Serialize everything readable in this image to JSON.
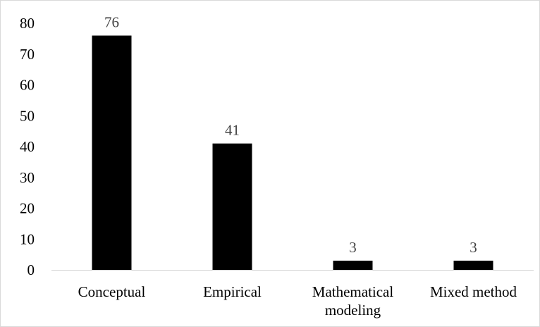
{
  "chart_data": {
    "type": "bar",
    "categories": [
      [
        "Conceptual"
      ],
      [
        "Empirical"
      ],
      [
        "Mathematical",
        "modeling"
      ],
      [
        "Mixed method"
      ]
    ],
    "values": [
      76,
      41,
      3,
      3
    ],
    "data_labels": [
      "76",
      "41",
      "3",
      "3"
    ],
    "yticks": [
      "0",
      "10",
      "20",
      "30",
      "40",
      "50",
      "60",
      "70",
      "80"
    ],
    "ylim": [
      0,
      80
    ],
    "title": "",
    "xlabel": "",
    "ylabel": "",
    "grid": false,
    "legend": "none",
    "bar_color": "#000000"
  }
}
